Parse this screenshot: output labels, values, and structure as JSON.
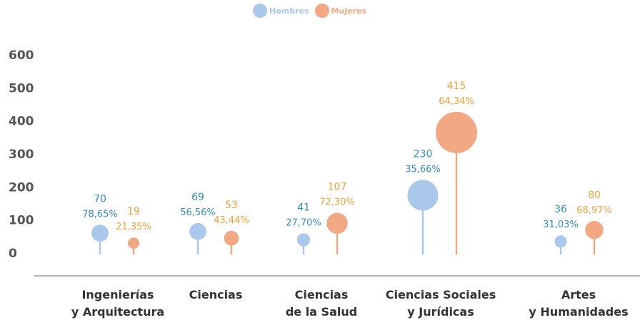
{
  "colors": {
    "hombres": "#a9c8ea",
    "mujeres": "#f2a882",
    "hombres_label": "#3390b8",
    "mujeres_label": "#f0a23a",
    "axis_text": "#555555",
    "baseline": "#999999"
  },
  "chart_data": {
    "type": "scatter",
    "subtype": "lollipop-bubble",
    "title": "",
    "xlabel": "",
    "ylabel": "",
    "ylim": [
      0,
      600
    ],
    "yticks": [
      0,
      100,
      200,
      300,
      400,
      500,
      600
    ],
    "grid": false,
    "legend": "top-center",
    "categories": [
      [
        "Ingenierías",
        "y Arquitectura"
      ],
      [
        "Ciencias"
      ],
      [
        "Ciencias",
        "de la Salud"
      ],
      [
        "Ciencias Sociales",
        "y Jurídicas"
      ],
      [
        "Artes",
        "y Humanidades"
      ]
    ],
    "series": [
      {
        "name": "Hombres",
        "color_key": "hombres",
        "values": [
          70,
          69,
          41,
          230,
          36
        ],
        "percents": [
          "78,65%",
          "56,56%",
          "27,70%",
          "35,66%",
          "31,03%"
        ],
        "plot_y": [
          60,
          65,
          40,
          175,
          35
        ]
      },
      {
        "name": "Mujeres",
        "color_key": "mujeres",
        "values": [
          19,
          53,
          107,
          415,
          80
        ],
        "percents": [
          "21,35%",
          "43,44%",
          "72,30%",
          "64,34%",
          "68,97%"
        ],
        "plot_y": [
          30,
          45,
          90,
          365,
          70
        ]
      }
    ]
  }
}
